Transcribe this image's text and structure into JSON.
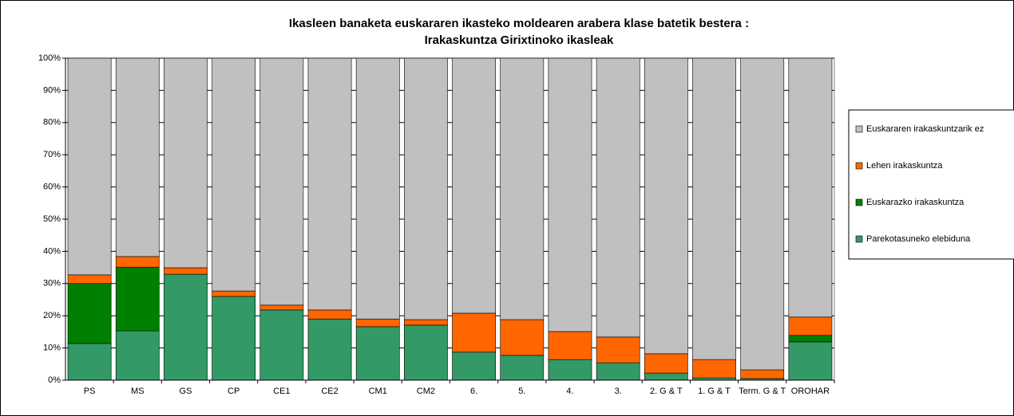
{
  "chart_data": {
    "type": "stacked_bar",
    "title": "Ikasleen banaketa euskararen ikasteko moldearen arabera klase batetik bestera :",
    "subtitle": "Irakaskuntza Girixtinoko ikasleak",
    "categories": [
      "PS",
      "MS",
      "GS",
      "CP",
      "CE1",
      "CE2",
      "CM1",
      "CM2",
      "6.",
      "5.",
      "4.",
      "3.",
      "2. G & T",
      "1. G & T",
      "Term. G & T",
      "OROHAR"
    ],
    "series": [
      {
        "name": "Parekotasuneko elebiduna",
        "color": "#339966",
        "values": [
          11.4,
          15.3,
          32.9,
          26,
          21.8,
          19,
          16.6,
          17.1,
          8.7,
          7.7,
          6.4,
          5.4,
          2.2,
          0.7,
          0.5,
          11.9
        ]
      },
      {
        "name": "Euskarazko irakaskuntza",
        "color": "#008000",
        "values": [
          18.6,
          19.8,
          0,
          0,
          0,
          0,
          0,
          0,
          0,
          0,
          0,
          0,
          0,
          0,
          0,
          2
        ]
      },
      {
        "name": "Lehen irakaskuntza",
        "color": "#ff6600",
        "values": [
          2.7,
          3.3,
          2,
          1.7,
          1.5,
          2.8,
          2.4,
          1.7,
          12.1,
          11.1,
          8.7,
          8,
          6,
          5.7,
          2.7,
          5.7
        ]
      },
      {
        "name": "Euskararen irakaskuntzarik ez",
        "color": "#c0c0c0",
        "values": [
          67.3,
          61.6,
          65.1,
          72.3,
          76.7,
          78.2,
          81,
          81.2,
          79.2,
          81.2,
          84.9,
          86.6,
          91.8,
          93.6,
          96.8,
          80.4
        ]
      }
    ],
    "ylim": [
      0,
      100
    ],
    "yticks": [
      {
        "value": 0,
        "label": "0%"
      },
      {
        "value": 10,
        "label": "10%"
      },
      {
        "value": 20,
        "label": "20%"
      },
      {
        "value": 30,
        "label": "30%"
      },
      {
        "value": 40,
        "label": "40%"
      },
      {
        "value": 50,
        "label": "50%"
      },
      {
        "value": 60,
        "label": "60%"
      },
      {
        "value": 70,
        "label": "70%"
      },
      {
        "value": 80,
        "label": "80%"
      },
      {
        "value": 90,
        "label": "90%"
      },
      {
        "value": 100,
        "label": "100%"
      }
    ],
    "grid": true,
    "legend": "right"
  }
}
